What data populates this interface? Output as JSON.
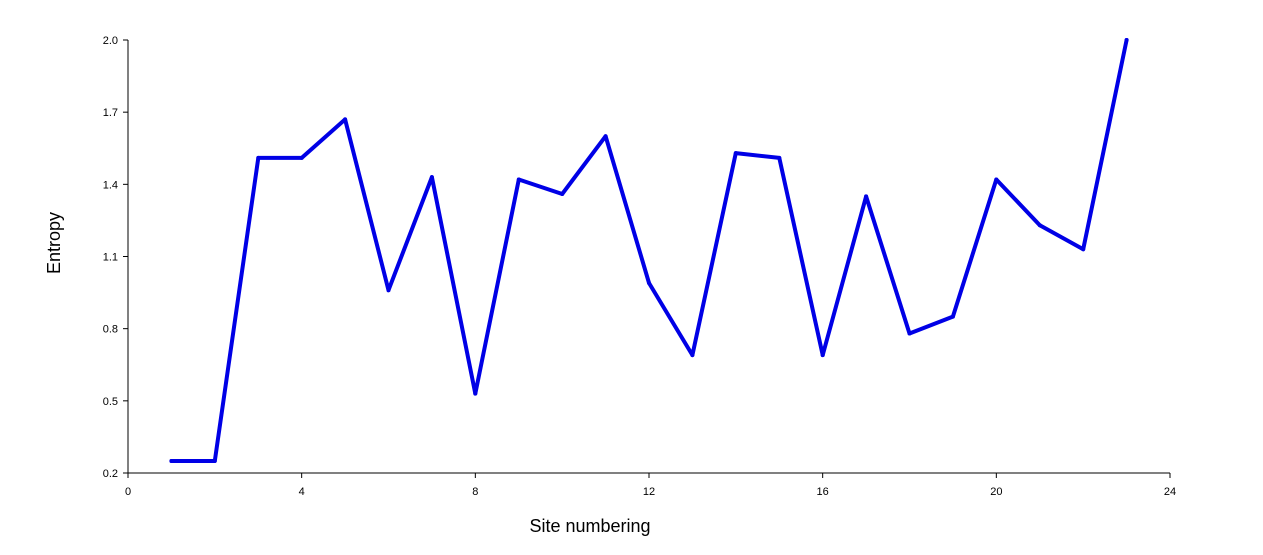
{
  "chart_data": {
    "type": "line",
    "title": "",
    "xlabel": "Site numbering",
    "ylabel": "Entropy",
    "xlim": [
      0,
      24
    ],
    "ylim": [
      0.2,
      2.0
    ],
    "xticks": [
      "0",
      "4",
      "8",
      "12",
      "16",
      "20",
      "24"
    ],
    "yticks": [
      "0.2",
      "0.5",
      "0.8",
      "1.1",
      "1.4",
      "1.7",
      "2.0"
    ],
    "grid": false,
    "legend": "none",
    "series": [
      {
        "color": "#0000e6",
        "x": [
          1,
          2,
          3,
          4,
          5,
          6,
          7,
          8,
          9,
          10,
          11,
          12,
          13,
          14,
          15,
          16,
          17,
          18,
          19,
          20,
          21,
          22,
          23
        ],
        "y": [
          0.25,
          0.25,
          1.51,
          1.51,
          1.67,
          0.96,
          1.43,
          0.53,
          1.42,
          1.36,
          1.6,
          0.99,
          0.69,
          1.53,
          1.51,
          0.69,
          1.35,
          0.78,
          0.85,
          1.42,
          1.23,
          1.13,
          2.0
        ]
      }
    ]
  }
}
